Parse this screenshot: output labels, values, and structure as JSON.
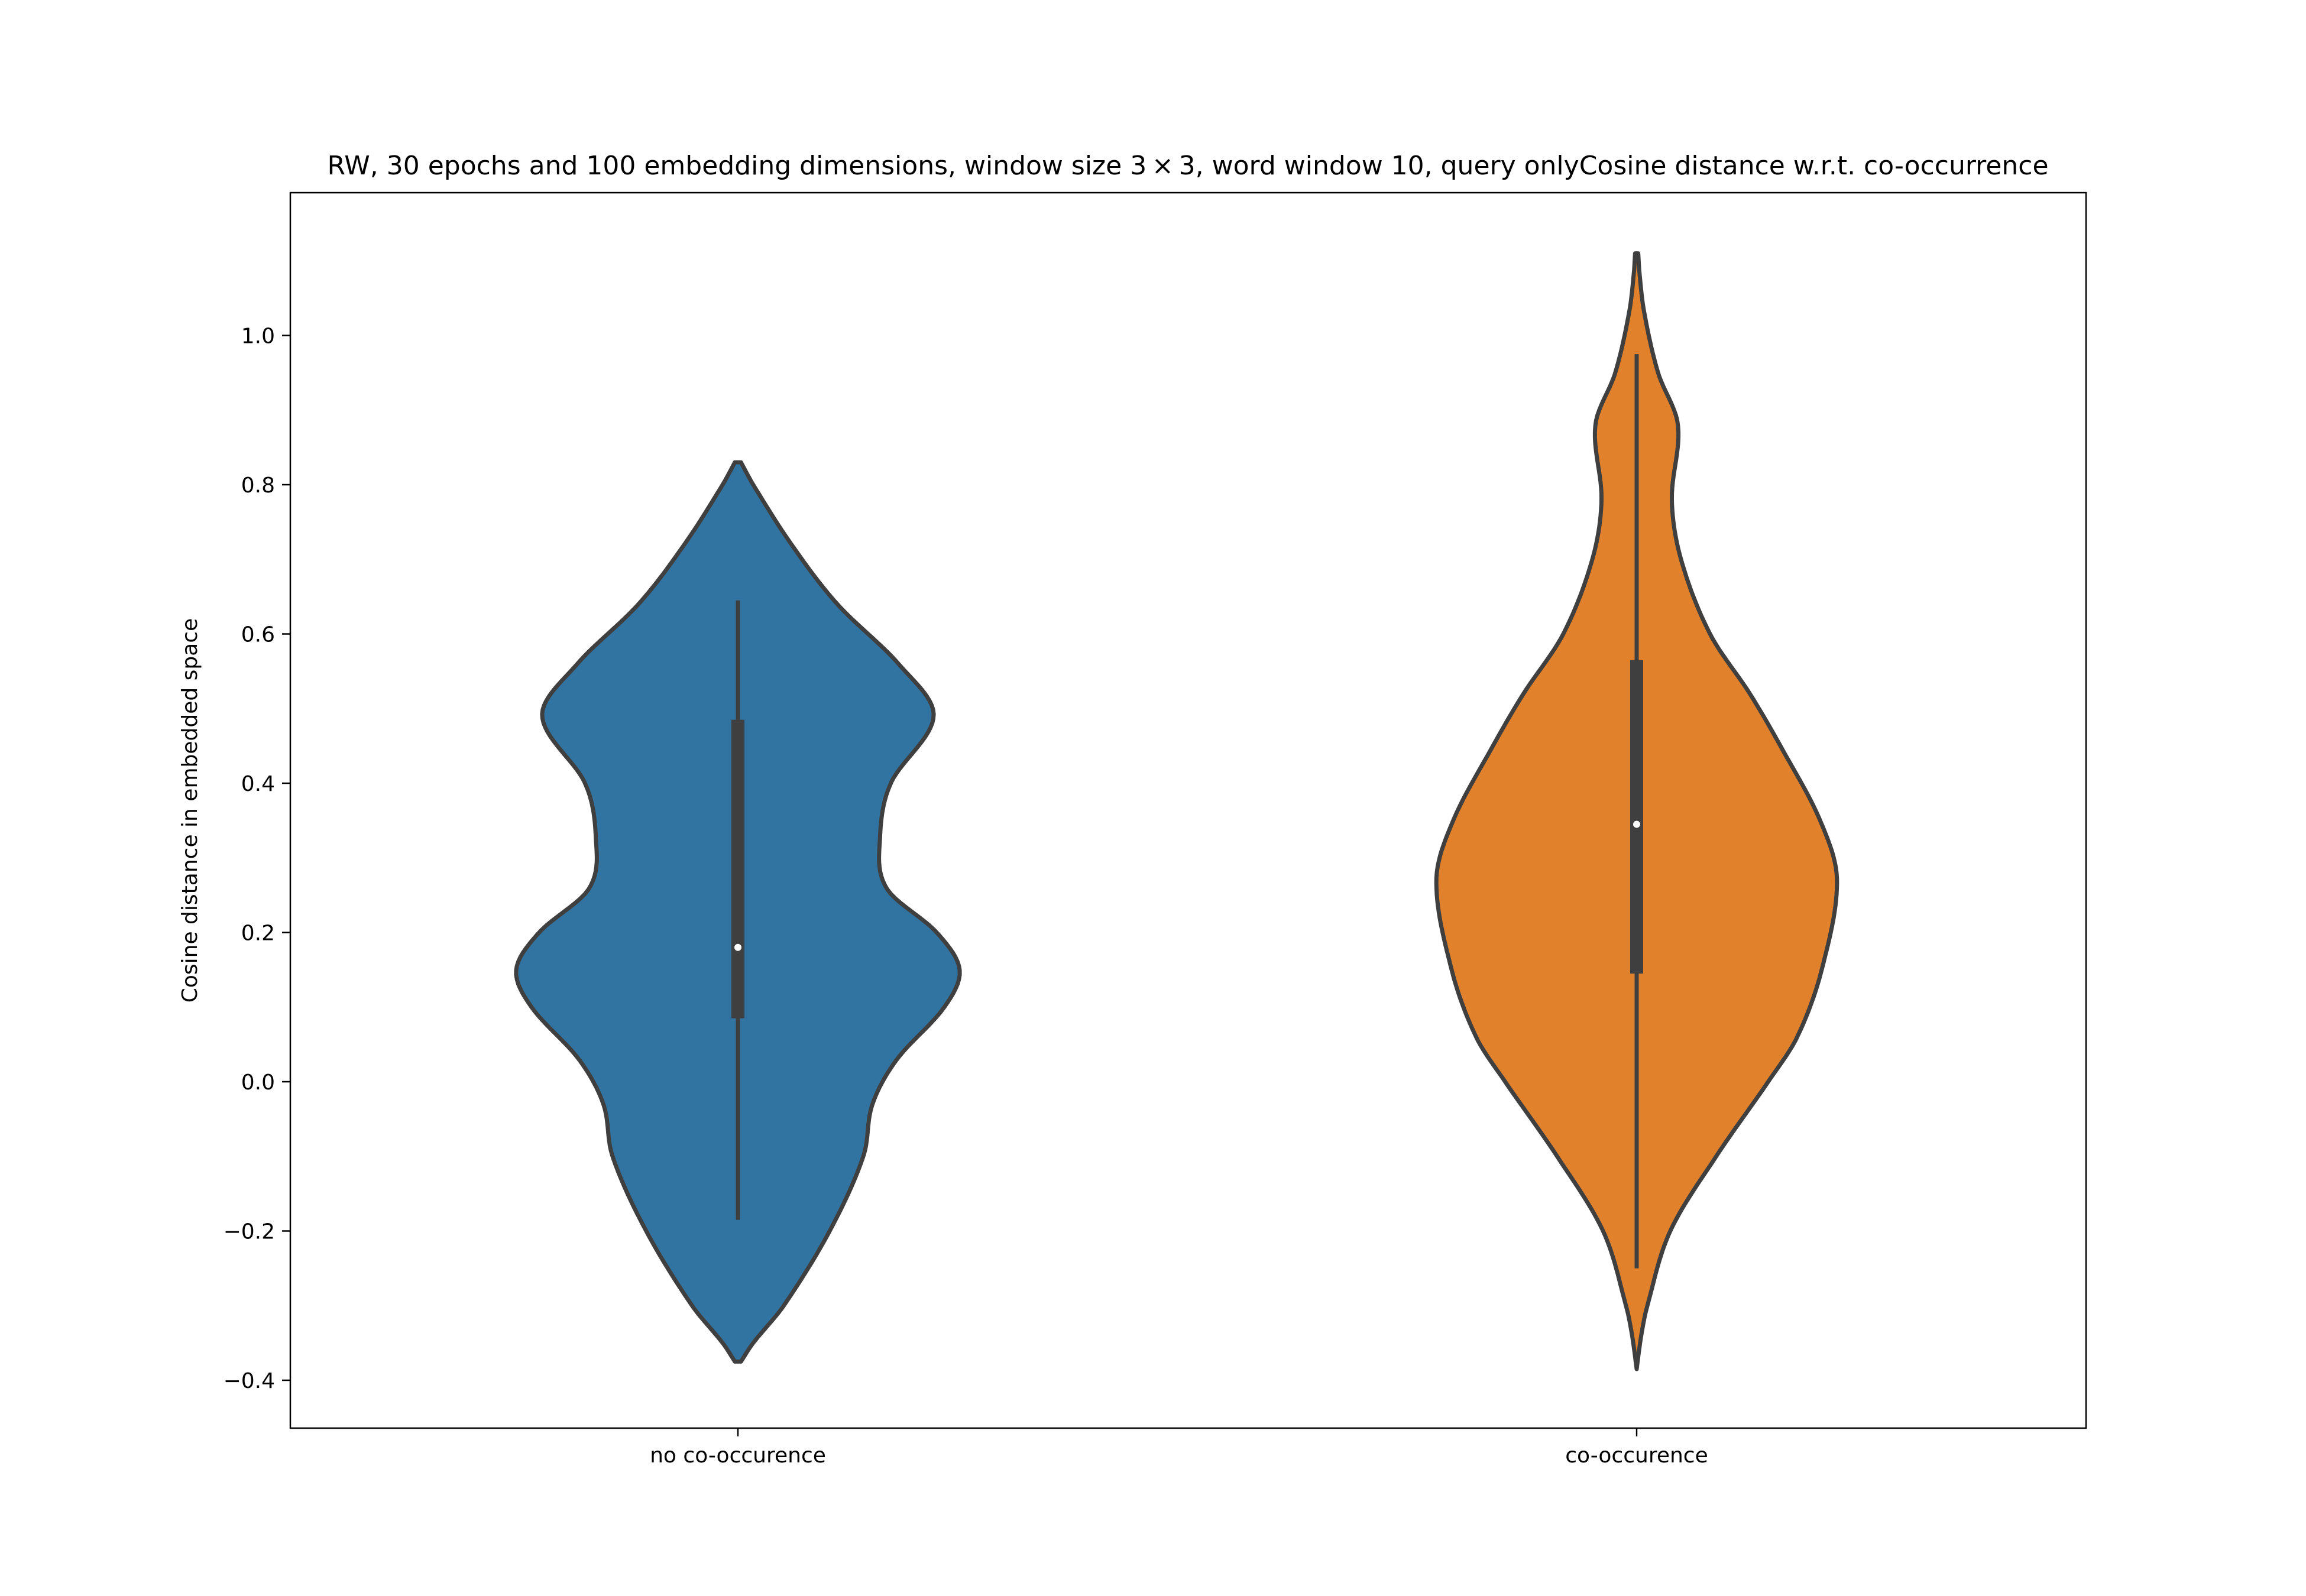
{
  "chart_data": {
    "type": "violin",
    "title": "RW, 30 epochs and 100 embedding dimensions, window size 3 × 3, word window 10, query onlyCosine distance w.r.t. co-occurrence",
    "xlabel": "",
    "ylabel": "Cosine distance in embedded space",
    "ylim": [
      -0.46,
      1.2
    ],
    "yticks": [
      -0.4,
      -0.2,
      0.0,
      0.2,
      0.4,
      0.6,
      0.8,
      1.0
    ],
    "ytick_labels": [
      "−0.4",
      "−0.2",
      "0.0",
      "0.2",
      "0.4",
      "0.6",
      "0.8",
      "1.0"
    ],
    "grid": false,
    "categories": [
      "no co-occurence",
      "co-occurence"
    ],
    "series": [
      {
        "category": "no co-occurence",
        "color": "#3274a1",
        "density_profile": [
          [
            -0.375,
            0.02
          ],
          [
            -0.35,
            0.1
          ],
          [
            -0.3,
            0.3
          ],
          [
            -0.2,
            0.6
          ],
          [
            -0.1,
            0.82
          ],
          [
            -0.03,
            0.88
          ],
          [
            0.03,
            1.04
          ],
          [
            0.1,
            1.35
          ],
          [
            0.15,
            1.45
          ],
          [
            0.2,
            1.3
          ],
          [
            0.26,
            0.97
          ],
          [
            0.33,
            0.93
          ],
          [
            0.4,
            1.0
          ],
          [
            0.49,
            1.28
          ],
          [
            0.56,
            1.05
          ],
          [
            0.64,
            0.65
          ],
          [
            0.72,
            0.35
          ],
          [
            0.8,
            0.1
          ],
          [
            0.83,
            0.02
          ]
        ],
        "whisker_min": -0.185,
        "q1": 0.085,
        "median": 0.18,
        "q3": 0.485,
        "whisker_max": 0.645
      },
      {
        "category": "co-occurence",
        "color": "#e1812c",
        "density_profile": [
          [
            -0.385,
            0.0
          ],
          [
            -0.34,
            0.03
          ],
          [
            -0.3,
            0.07
          ],
          [
            -0.2,
            0.22
          ],
          [
            -0.1,
            0.52
          ],
          [
            0.0,
            0.86
          ],
          [
            0.06,
            1.05
          ],
          [
            0.15,
            1.21
          ],
          [
            0.27,
            1.31
          ],
          [
            0.35,
            1.2
          ],
          [
            0.45,
            0.94
          ],
          [
            0.52,
            0.74
          ],
          [
            0.6,
            0.48
          ],
          [
            0.7,
            0.29
          ],
          [
            0.78,
            0.23
          ],
          [
            0.88,
            0.27
          ],
          [
            0.95,
            0.14
          ],
          [
            1.03,
            0.05
          ],
          [
            1.08,
            0.02
          ],
          [
            1.11,
            0.01
          ]
        ],
        "whisker_min": -0.25,
        "q1": 0.145,
        "median": 0.345,
        "q3": 0.565,
        "whisker_max": 0.975
      }
    ]
  }
}
